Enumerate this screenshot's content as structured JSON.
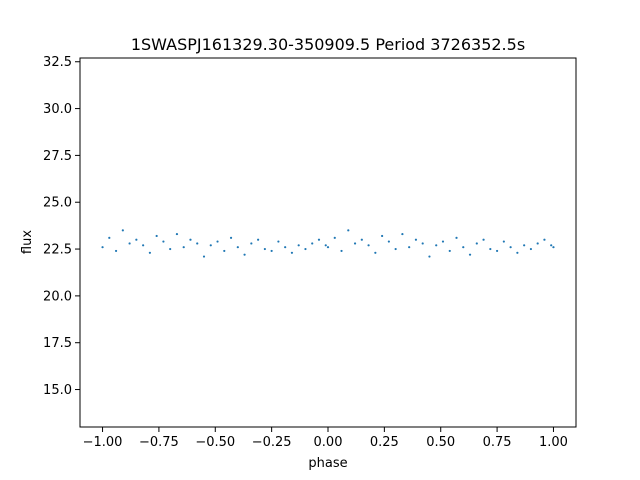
{
  "chart_data": {
    "type": "scatter",
    "title": "1SWASPJ161329.30-350909.5 Period 3726352.5s",
    "xlabel": "phase",
    "ylabel": "flux",
    "xlim": [
      -1.1,
      1.1
    ],
    "ylim": [
      13.0,
      32.7
    ],
    "xticks": [
      -1.0,
      -0.75,
      -0.5,
      -0.25,
      0.0,
      0.25,
      0.5,
      0.75,
      1.0
    ],
    "xtick_labels": [
      "−1.00",
      "−0.75",
      "−0.50",
      "−0.25",
      "0.00",
      "0.25",
      "0.50",
      "0.75",
      "1.00"
    ],
    "yticks": [
      15.0,
      17.5,
      20.0,
      22.5,
      25.0,
      27.5,
      30.0,
      32.5
    ],
    "ytick_labels": [
      "15.0",
      "17.5",
      "20.0",
      "22.5",
      "25.0",
      "27.5",
      "30.0",
      "32.5"
    ],
    "grid": false,
    "marker_color": "#1f77b4",
    "series": [
      {
        "x": [
          -1.0,
          -0.97,
          -0.94,
          -0.91,
          -0.88,
          -0.85,
          -0.82,
          -0.79,
          -0.76,
          -0.73,
          -0.7,
          -0.67,
          -0.64,
          -0.61,
          -0.58,
          -0.55,
          -0.52,
          -0.49,
          -0.46,
          -0.43,
          -0.4,
          -0.37,
          -0.34,
          -0.31,
          -0.28,
          -0.25,
          -0.22,
          -0.19,
          -0.16,
          -0.13,
          -0.1,
          -0.07,
          -0.04,
          -0.01,
          0.0,
          0.03,
          0.06,
          0.09,
          0.12,
          0.15,
          0.18,
          0.21,
          0.24,
          0.27,
          0.3,
          0.33,
          0.36,
          0.39,
          0.42,
          0.45,
          0.48,
          0.51,
          0.54,
          0.57,
          0.6,
          0.63,
          0.66,
          0.69,
          0.72,
          0.75,
          0.78,
          0.81,
          0.84,
          0.87,
          0.9,
          0.93,
          0.96,
          0.99,
          1.0
        ],
        "y": [
          22.6,
          23.1,
          22.4,
          23.5,
          22.8,
          23.0,
          22.7,
          22.3,
          23.2,
          22.9,
          22.5,
          23.3,
          22.6,
          23.0,
          22.8,
          22.1,
          22.7,
          22.9,
          22.4,
          23.1,
          22.6,
          22.2,
          22.8,
          23.0,
          22.5,
          22.4,
          22.9,
          22.6,
          22.3,
          22.7,
          22.5,
          22.8,
          23.0,
          22.7,
          22.6,
          23.1,
          22.4,
          23.5,
          22.8,
          23.0,
          22.7,
          22.3,
          23.2,
          22.9,
          22.5,
          23.3,
          22.6,
          23.0,
          22.8,
          22.1,
          22.7,
          22.9,
          22.4,
          23.1,
          22.6,
          22.2,
          22.8,
          23.0,
          22.5,
          22.4,
          22.9,
          22.6,
          22.3,
          22.7,
          22.5,
          22.8,
          23.0,
          22.7,
          22.6
        ]
      }
    ]
  }
}
